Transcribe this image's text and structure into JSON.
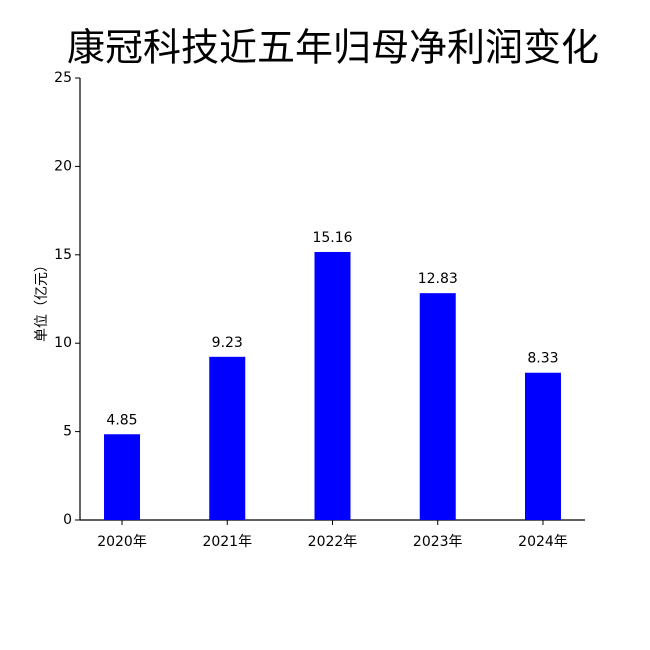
{
  "chart_data": {
    "type": "bar",
    "title": "康冠科技近五年归母净利润变化",
    "y_label": "单位（亿元）",
    "categories": [
      "2020年",
      "2021年",
      "2022年",
      "2023年",
      "2024年"
    ],
    "values": [
      4.85,
      9.23,
      15.16,
      12.83,
      8.33
    ],
    "color": "#0000ff",
    "ylim": [
      0,
      25
    ],
    "yticks": [
      0,
      5,
      10,
      15,
      20,
      25
    ],
    "grid": false,
    "data_labels": true
  }
}
